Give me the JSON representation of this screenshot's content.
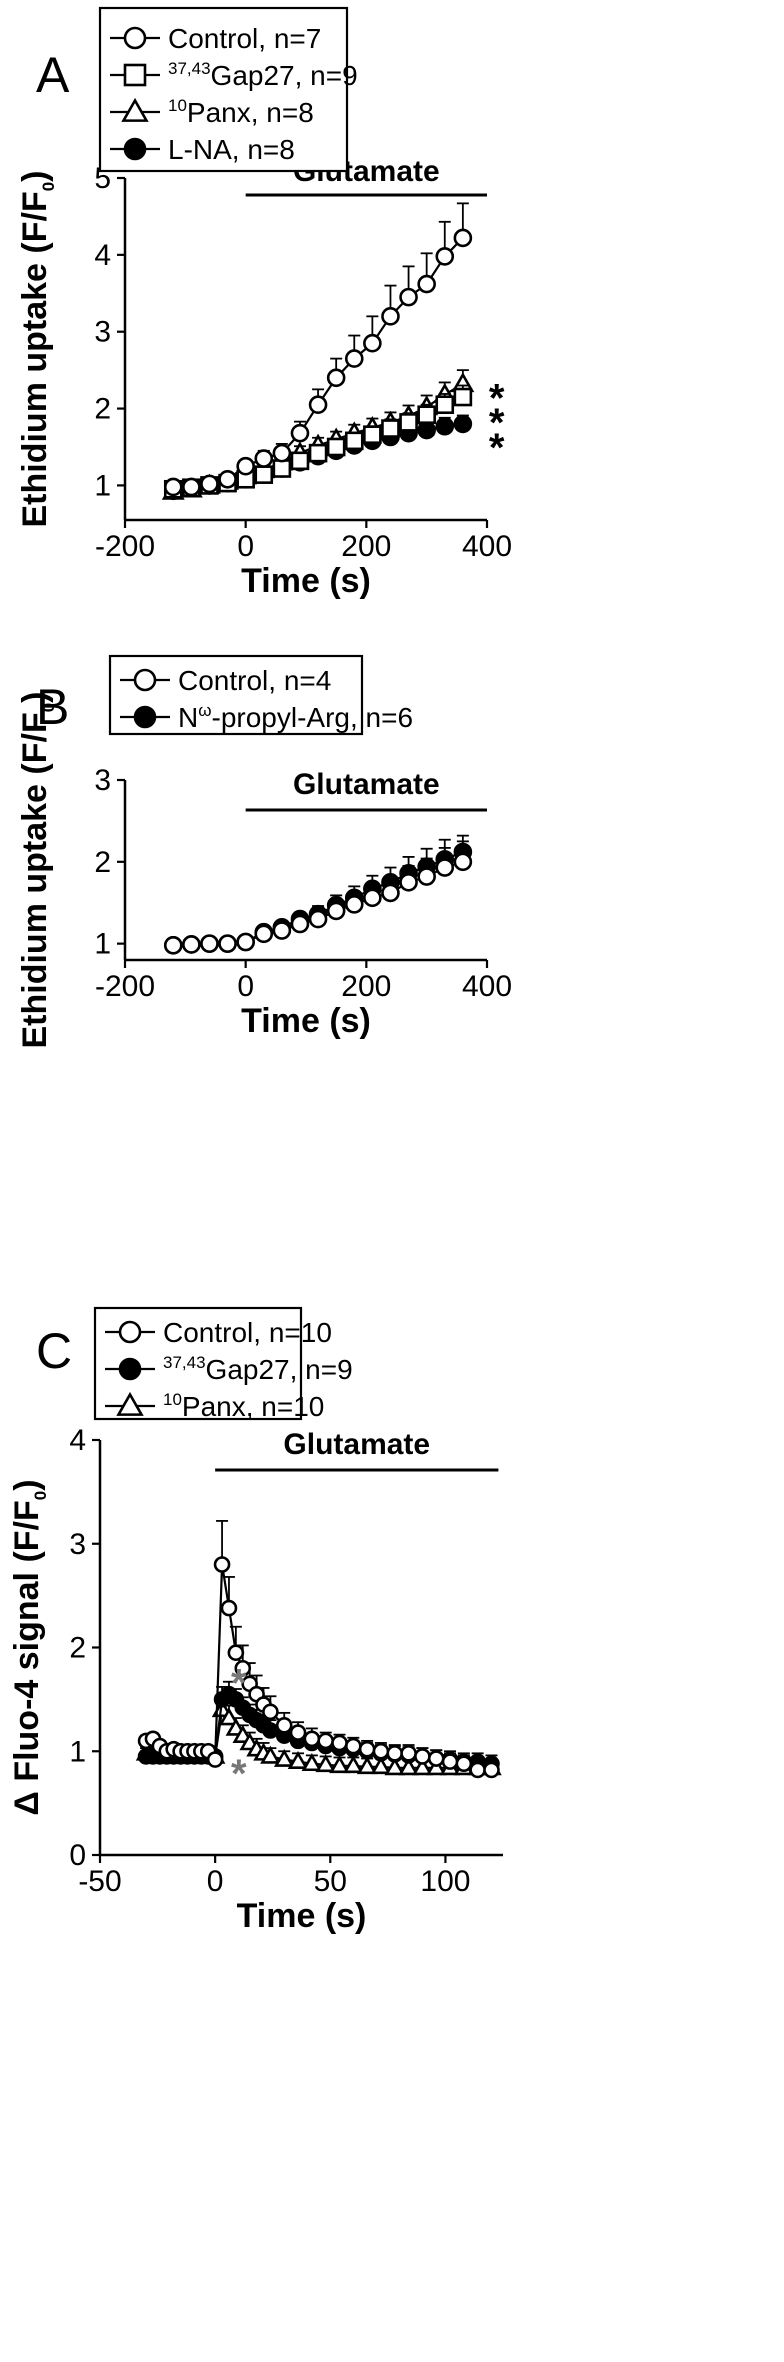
{
  "figure": {
    "background": "#ffffff",
    "ink": "#000000",
    "gray_ink": "#777777"
  },
  "chart_data": [
    {
      "panel": "A",
      "type": "line",
      "xlabel": "Time (s)",
      "ylabel": "Ethidium uptake (F/F0)",
      "ylabel_parts": {
        "main": "Ethidium uptake (F/F",
        "sub": "0",
        "close": ")"
      },
      "xlim": [
        -200,
        400
      ],
      "ylim": [
        0.55,
        5
      ],
      "xticks": [
        -200,
        0,
        200,
        400
      ],
      "yticks": [
        1,
        2,
        3,
        4,
        5
      ],
      "annotation": {
        "text": "Glutamate",
        "x_start": 0,
        "x_end": 400
      },
      "significance": [
        "*",
        "*",
        "*"
      ],
      "legend_position": "top-left",
      "series": [
        {
          "name": "Control, n=7",
          "legend": {
            "sup": "",
            "text": "Control, n=7"
          },
          "marker": "circle-open",
          "x": [
            -120,
            -90,
            -60,
            -30,
            0,
            30,
            60,
            90,
            120,
            150,
            180,
            210,
            240,
            270,
            300,
            330,
            360
          ],
          "y": [
            0.98,
            0.98,
            1.02,
            1.08,
            1.25,
            1.35,
            1.42,
            1.68,
            2.05,
            2.4,
            2.65,
            2.85,
            3.2,
            3.45,
            3.62,
            3.98,
            4.22
          ],
          "err": [
            0.06,
            0.06,
            0.06,
            0.08,
            0.08,
            0.1,
            0.12,
            0.15,
            0.2,
            0.25,
            0.3,
            0.35,
            0.4,
            0.4,
            0.4,
            0.45,
            0.45
          ]
        },
        {
          "name": "37,43Gap27, n=9",
          "legend": {
            "sup": "37,43",
            "text": "Gap27, n=9"
          },
          "marker": "square-open",
          "x": [
            -120,
            -90,
            -60,
            -30,
            0,
            30,
            60,
            90,
            120,
            150,
            180,
            210,
            240,
            270,
            300,
            330,
            360
          ],
          "y": [
            0.95,
            0.97,
            1.0,
            1.03,
            1.08,
            1.14,
            1.22,
            1.32,
            1.42,
            1.5,
            1.58,
            1.66,
            1.74,
            1.82,
            1.92,
            2.05,
            2.15
          ],
          "err": [
            0.05,
            0.05,
            0.05,
            0.06,
            0.06,
            0.06,
            0.07,
            0.08,
            0.09,
            0.1,
            0.1,
            0.11,
            0.12,
            0.12,
            0.13,
            0.14,
            0.15
          ]
        },
        {
          "name": "10Panx, n=8",
          "legend": {
            "sup": "10",
            "text": "Panx, n=8"
          },
          "marker": "triangle-open",
          "x": [
            -120,
            -90,
            -60,
            -30,
            0,
            30,
            60,
            90,
            120,
            150,
            180,
            210,
            240,
            270,
            300,
            330,
            360
          ],
          "y": [
            0.92,
            0.95,
            1.0,
            1.05,
            1.12,
            1.2,
            1.3,
            1.42,
            1.52,
            1.6,
            1.68,
            1.75,
            1.82,
            1.9,
            2.02,
            2.18,
            2.32
          ],
          "err": [
            0.05,
            0.05,
            0.05,
            0.06,
            0.06,
            0.07,
            0.08,
            0.09,
            0.1,
            0.1,
            0.11,
            0.12,
            0.13,
            0.14,
            0.15,
            0.16,
            0.18
          ]
        },
        {
          "name": "L-NA, n=8",
          "legend": {
            "sup": "",
            "text": "L-NA, n=8"
          },
          "marker": "circle-filled",
          "x": [
            -120,
            -90,
            -60,
            -30,
            0,
            30,
            60,
            90,
            120,
            150,
            180,
            210,
            240,
            270,
            300,
            330,
            360
          ],
          "y": [
            0.93,
            0.97,
            1.0,
            1.03,
            1.08,
            1.15,
            1.22,
            1.3,
            1.38,
            1.45,
            1.52,
            1.58,
            1.63,
            1.68,
            1.72,
            1.77,
            1.8
          ],
          "err": [
            0.05,
            0.05,
            0.05,
            0.05,
            0.06,
            0.06,
            0.07,
            0.07,
            0.08,
            0.08,
            0.09,
            0.09,
            0.1,
            0.1,
            0.1,
            0.11,
            0.11
          ]
        }
      ]
    },
    {
      "panel": "B",
      "type": "line",
      "xlabel": "Time (s)",
      "ylabel": "Ethidium uptake (F/F0)",
      "ylabel_parts": {
        "main": "Ethidium uptake (F/F",
        "sub": "0",
        "close": ")"
      },
      "xlim": [
        -200,
        400
      ],
      "ylim": [
        0.8,
        3
      ],
      "xticks": [
        -200,
        0,
        200,
        400
      ],
      "yticks": [
        1,
        2,
        3
      ],
      "annotation": {
        "text": "Glutamate",
        "x_start": 0,
        "x_end": 400
      },
      "legend_position": "top-left",
      "series": [
        {
          "name": "Control, n=4",
          "legend": {
            "sup": "",
            "text": "Control, n=4"
          },
          "marker": "circle-open",
          "x": [
            -120,
            -90,
            -60,
            -30,
            0,
            30,
            60,
            90,
            120,
            150,
            180,
            210,
            240,
            270,
            300,
            330,
            360
          ],
          "y": [
            0.98,
            0.99,
            1.0,
            1.0,
            1.02,
            1.12,
            1.16,
            1.24,
            1.3,
            1.4,
            1.48,
            1.56,
            1.62,
            1.75,
            1.82,
            1.93,
            2.0
          ],
          "err": [
            0.02,
            0.02,
            0.02,
            0.02,
            0.03,
            0.04,
            0.06,
            0.08,
            0.1,
            0.12,
            0.14,
            0.16,
            0.18,
            0.2,
            0.22,
            0.24,
            0.25
          ]
        },
        {
          "name": "Nω-propyl-Arg, n=6",
          "legend": {
            "pre": "N",
            "sup": "ω",
            "text": "-propyl-Arg, n=6"
          },
          "marker": "circle-filled",
          "x": [
            -120,
            -90,
            -60,
            -30,
            0,
            30,
            60,
            90,
            120,
            150,
            180,
            210,
            240,
            270,
            300,
            330,
            360
          ],
          "y": [
            0.98,
            0.99,
            1.0,
            1.0,
            1.02,
            1.14,
            1.2,
            1.3,
            1.36,
            1.47,
            1.56,
            1.67,
            1.75,
            1.86,
            1.94,
            2.03,
            2.12
          ],
          "err": [
            0.02,
            0.02,
            0.02,
            0.02,
            0.03,
            0.04,
            0.06,
            0.08,
            0.1,
            0.12,
            0.14,
            0.16,
            0.18,
            0.2,
            0.22,
            0.24,
            0.2
          ]
        }
      ]
    },
    {
      "panel": "C",
      "type": "line",
      "xlabel": "Time (s)",
      "ylabel": "Δ Fluo-4 signal (F/F0)",
      "ylabel_parts": {
        "main": "Δ Fluo-4 signal (F/F",
        "sub": "0",
        "close": ")"
      },
      "xlim": [
        -50,
        125
      ],
      "ylim": [
        0,
        4
      ],
      "xticks": [
        -50,
        0,
        50,
        100
      ],
      "yticks": [
        0,
        1,
        2,
        3,
        4
      ],
      "annotation": {
        "text": "Glutamate",
        "x_start": 0,
        "x_end": 123
      },
      "significance": [
        "*",
        "*"
      ],
      "legend_position": "top-left",
      "series": [
        {
          "name": "Control, n=10",
          "legend": {
            "sup": "",
            "text": "Control, n=10"
          },
          "marker": "circle-open",
          "x": [
            -30,
            -27,
            -24,
            -21,
            -18,
            -15,
            -12,
            -9,
            -6,
            -3,
            0,
            3,
            6,
            9,
            12,
            15,
            18,
            21,
            24,
            30,
            36,
            42,
            48,
            54,
            60,
            66,
            72,
            78,
            84,
            90,
            96,
            102,
            108,
            114,
            120
          ],
          "y": [
            1.1,
            1.12,
            1.05,
            1.0,
            1.02,
            1.0,
            1.0,
            1.0,
            1.0,
            1.0,
            0.92,
            2.8,
            2.38,
            1.95,
            1.8,
            1.65,
            1.55,
            1.45,
            1.38,
            1.25,
            1.18,
            1.12,
            1.1,
            1.08,
            1.05,
            1.02,
            1.0,
            0.98,
            0.98,
            0.95,
            0.93,
            0.9,
            0.88,
            0.82,
            0.82
          ],
          "err": [
            0.05,
            0.05,
            0.05,
            0.05,
            0.05,
            0.05,
            0.05,
            0.05,
            0.05,
            0.05,
            0.05,
            0.42,
            0.3,
            0.25,
            0.22,
            0.2,
            0.18,
            0.16,
            0.15,
            0.12,
            0.1,
            0.1,
            0.08,
            0.08,
            0.08,
            0.08,
            0.08,
            0.08,
            0.08,
            0.08,
            0.08,
            0.08,
            0.08,
            0.08,
            0.08
          ]
        },
        {
          "name": "37,43Gap27, n=9",
          "legend": {
            "sup": "37,43",
            "text": "Gap27, n=9"
          },
          "marker": "circle-filled",
          "x": [
            -30,
            -27,
            -24,
            -21,
            -18,
            -15,
            -12,
            -9,
            -6,
            -3,
            0,
            3,
            6,
            9,
            12,
            15,
            18,
            21,
            24,
            30,
            36,
            42,
            48,
            54,
            60,
            66,
            72,
            78,
            84,
            90,
            96,
            102,
            108,
            114,
            120
          ],
          "y": [
            0.95,
            0.95,
            0.95,
            0.95,
            0.95,
            0.95,
            0.95,
            0.95,
            0.95,
            0.95,
            0.95,
            1.5,
            1.55,
            1.5,
            1.42,
            1.35,
            1.3,
            1.25,
            1.2,
            1.15,
            1.1,
            1.08,
            1.05,
            1.03,
            1.02,
            1.0,
            0.98,
            0.97,
            0.96,
            0.95,
            0.93,
            0.92,
            0.9,
            0.9,
            0.88
          ],
          "err": [
            0.05,
            0.05,
            0.05,
            0.05,
            0.05,
            0.05,
            0.05,
            0.05,
            0.05,
            0.05,
            0.05,
            0.12,
            0.12,
            0.1,
            0.1,
            0.1,
            0.1,
            0.1,
            0.1,
            0.08,
            0.08,
            0.08,
            0.08,
            0.08,
            0.08,
            0.08,
            0.08,
            0.08,
            0.08,
            0.08,
            0.08,
            0.08,
            0.08,
            0.08,
            0.08
          ]
        },
        {
          "name": "10Panx, n=10",
          "legend": {
            "sup": "10",
            "text": "Panx, n=10"
          },
          "marker": "triangle-open",
          "x": [
            -30,
            -27,
            -24,
            -21,
            -18,
            -15,
            -12,
            -9,
            -6,
            -3,
            0,
            3,
            6,
            9,
            12,
            15,
            18,
            21,
            24,
            30,
            36,
            42,
            48,
            54,
            60,
            66,
            72,
            78,
            84,
            90,
            96,
            102,
            108,
            114,
            120
          ],
          "y": [
            0.98,
            0.97,
            0.98,
            0.97,
            0.98,
            0.97,
            0.97,
            0.98,
            0.97,
            0.98,
            0.95,
            1.4,
            1.32,
            1.22,
            1.15,
            1.08,
            1.02,
            0.98,
            0.95,
            0.92,
            0.9,
            0.88,
            0.87,
            0.86,
            0.86,
            0.85,
            0.85,
            0.84,
            0.84,
            0.84,
            0.84,
            0.84,
            0.84,
            0.84,
            0.84
          ],
          "err": [
            0.05,
            0.05,
            0.05,
            0.05,
            0.05,
            0.05,
            0.05,
            0.05,
            0.05,
            0.05,
            0.05,
            0.14,
            0.12,
            0.1,
            0.1,
            0.1,
            0.1,
            0.1,
            0.08,
            0.08,
            0.08,
            0.08,
            0.08,
            0.08,
            0.08,
            0.08,
            0.08,
            0.08,
            0.08,
            0.08,
            0.08,
            0.08,
            0.08,
            0.08,
            0.08
          ]
        }
      ]
    }
  ]
}
